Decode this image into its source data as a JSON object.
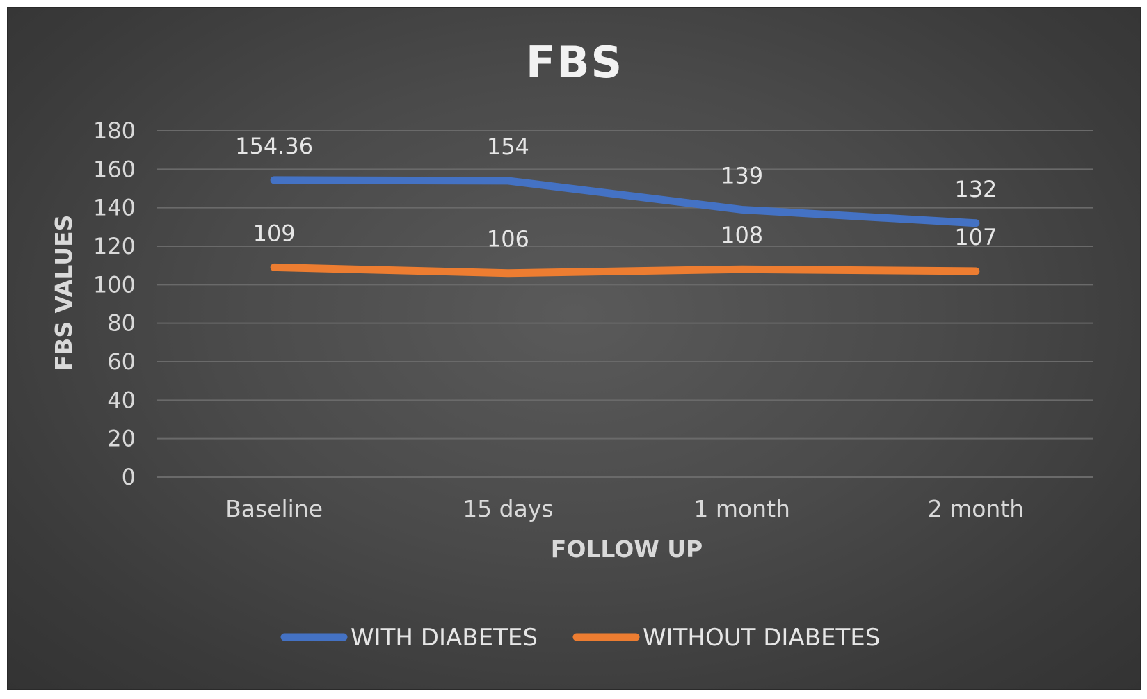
{
  "chart_data": {
    "type": "line",
    "title": "FBS",
    "xlabel": "FOLLOW UP",
    "ylabel": "FBS VALUES",
    "categories": [
      "Baseline",
      "15 days",
      "1 month",
      "2 month"
    ],
    "ylim": [
      0,
      180
    ],
    "yticks": [
      0,
      20,
      40,
      60,
      80,
      100,
      120,
      140,
      160,
      180
    ],
    "grid": true,
    "legend_position": "bottom",
    "series": [
      {
        "name": "WITH DIABETES",
        "values": [
          154.36,
          154,
          139,
          132
        ],
        "labels": [
          "154.36",
          "154",
          "139",
          "132"
        ],
        "color": "#4472c4"
      },
      {
        "name": "WITHOUT DIABETES",
        "values": [
          109,
          106,
          108,
          107
        ],
        "labels": [
          "109",
          "106",
          "108",
          "107"
        ],
        "color": "#ed7d31"
      }
    ]
  }
}
